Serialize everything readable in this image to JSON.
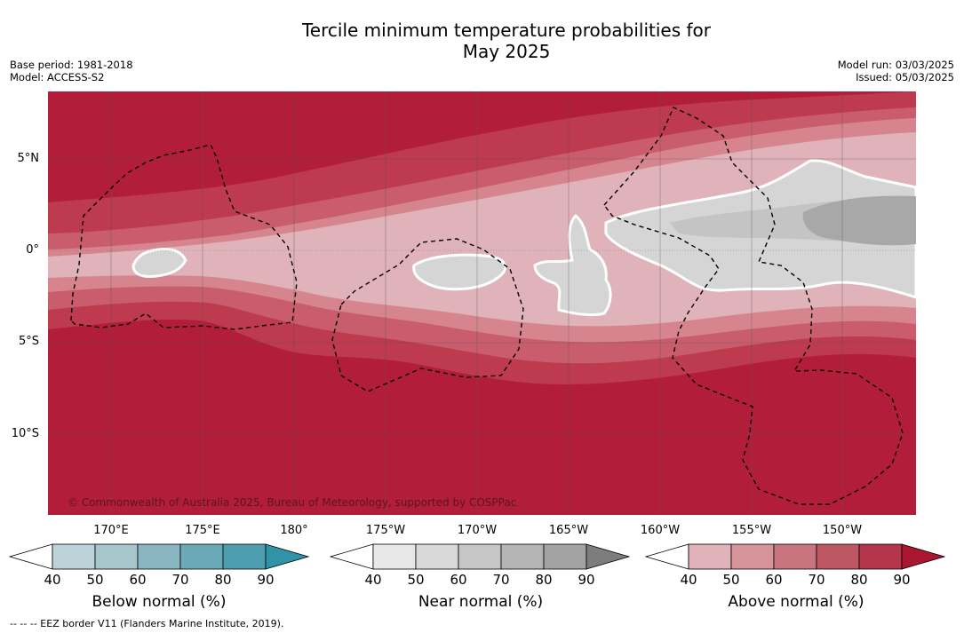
{
  "title_line1": "Tercile minimum temperature probabilities for",
  "title_line2": "May 2025",
  "meta": {
    "base_period": "Base period: 1981-2018",
    "model": "Model: ACCESS-S2",
    "model_run": "Model run: 03/03/2025",
    "issued": "Issued: 05/03/2025"
  },
  "map": {
    "lat_labels": [
      "5°N",
      "0°",
      "5°S",
      "10°S"
    ],
    "lon_labels": [
      "170°E",
      "175°E",
      "180°",
      "175°W",
      "170°W",
      "165°W",
      "160°W",
      "155°W",
      "150°W"
    ],
    "copyright": "© Commonwealth of Australia 2025, Bureau of Meteorology, supported by COSPPac",
    "colors": {
      "above_90": "#b21e3a",
      "above_80": "#bd3a4f",
      "above_70": "#c95d6d",
      "above_60": "#d6858f",
      "above_50": "#dfb3b9",
      "near_50": "#d5d5d5",
      "near_70": "#c4c4c4",
      "near_80": "#a8a8a8"
    }
  },
  "colorbars": [
    {
      "title": "Below normal (%)",
      "ticks": [
        "40",
        "50",
        "60",
        "70",
        "80",
        "90"
      ],
      "colors": [
        "#bcd3d9",
        "#a6c6cc",
        "#8ab6c1",
        "#6aa9b7",
        "#4d9fb0",
        "#3093a7"
      ]
    },
    {
      "title": "Near normal (%)",
      "ticks": [
        "40",
        "50",
        "60",
        "70",
        "80",
        "90"
      ],
      "colors": [
        "#e8e8e8",
        "#d8d8d8",
        "#c6c6c6",
        "#b4b4b4",
        "#a3a3a3",
        "#7d7d7d"
      ]
    },
    {
      "title": "Above normal (%)",
      "ticks": [
        "40",
        "50",
        "60",
        "70",
        "80",
        "90"
      ],
      "colors": [
        "#dfb3b9",
        "#d6939a",
        "#c97580",
        "#bd5762",
        "#b4344a",
        "#aa1530"
      ]
    }
  ],
  "footnote": "-- -- -- EEZ border V11 (Flanders Marine Institute, 2019)."
}
